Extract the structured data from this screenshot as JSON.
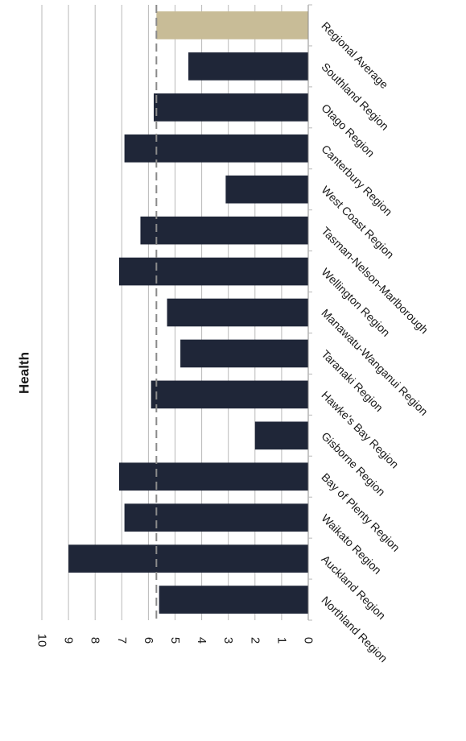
{
  "chart_data": {
    "type": "bar",
    "title": "Health",
    "orientation": "rotated-90-clockwise",
    "ylim": [
      0,
      10
    ],
    "y_ticks": [
      0,
      1,
      2,
      3,
      4,
      5,
      6,
      7,
      8,
      9,
      10
    ],
    "y_tick_labels": [
      "0",
      "1",
      "2",
      "3",
      "4",
      "5",
      "6",
      "7",
      "8",
      "9",
      "10"
    ],
    "categories": [
      "Northland Region",
      "Auckland Region",
      "Waikato Region",
      "Bay of Plenty Region",
      "Gisborne Region",
      "Hawke's Bay Region",
      "Taranaki Region",
      "Manawatu-Wanganui Region",
      "Wellington Region",
      "Tasman-Nelson-Marlborough",
      "West Coast Region",
      "Canterbury Region",
      "Otago Region",
      "Southland Region",
      "Regional Average"
    ],
    "values": [
      5.6,
      9.0,
      6.9,
      7.1,
      2.0,
      5.9,
      4.8,
      5.3,
      7.1,
      6.3,
      3.1,
      6.9,
      5.8,
      4.5,
      5.7
    ],
    "reference_line": {
      "value": 5.7,
      "style": "dashed"
    },
    "colors": {
      "bar": "#1f2638",
      "average_bar": "#c8bc97",
      "grid": "#b9b9b9",
      "reference_line": "#8a8a8a",
      "text": "#1a1a1a"
    },
    "grid": true,
    "legend": "none"
  }
}
